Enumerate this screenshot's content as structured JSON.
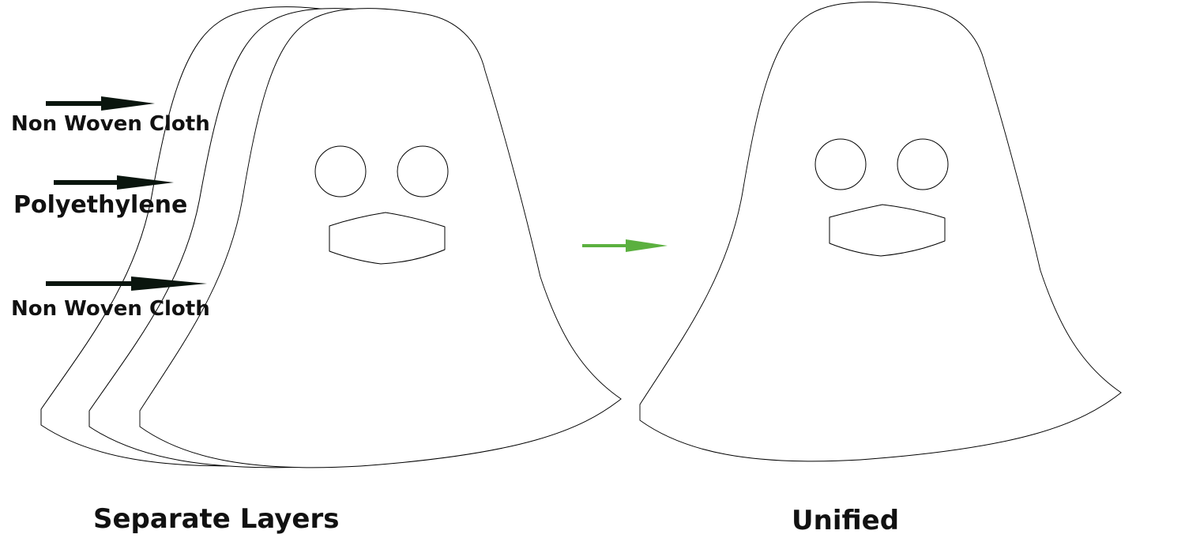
{
  "layers": [
    {
      "label": "Non Woven Cloth"
    },
    {
      "label": "Polyethylene"
    },
    {
      "label": "Non Woven Cloth"
    }
  ],
  "captions": {
    "left": "Separate Layers",
    "right": "Unified"
  },
  "colors": {
    "outline": "#000000",
    "layer_arrow": "#0a150e",
    "transform_arrow": "#5bb03f",
    "text": "#111111"
  },
  "icons": {
    "layer_arrow": "arrow-right-icon",
    "transform_arrow": "arrow-right-icon"
  }
}
